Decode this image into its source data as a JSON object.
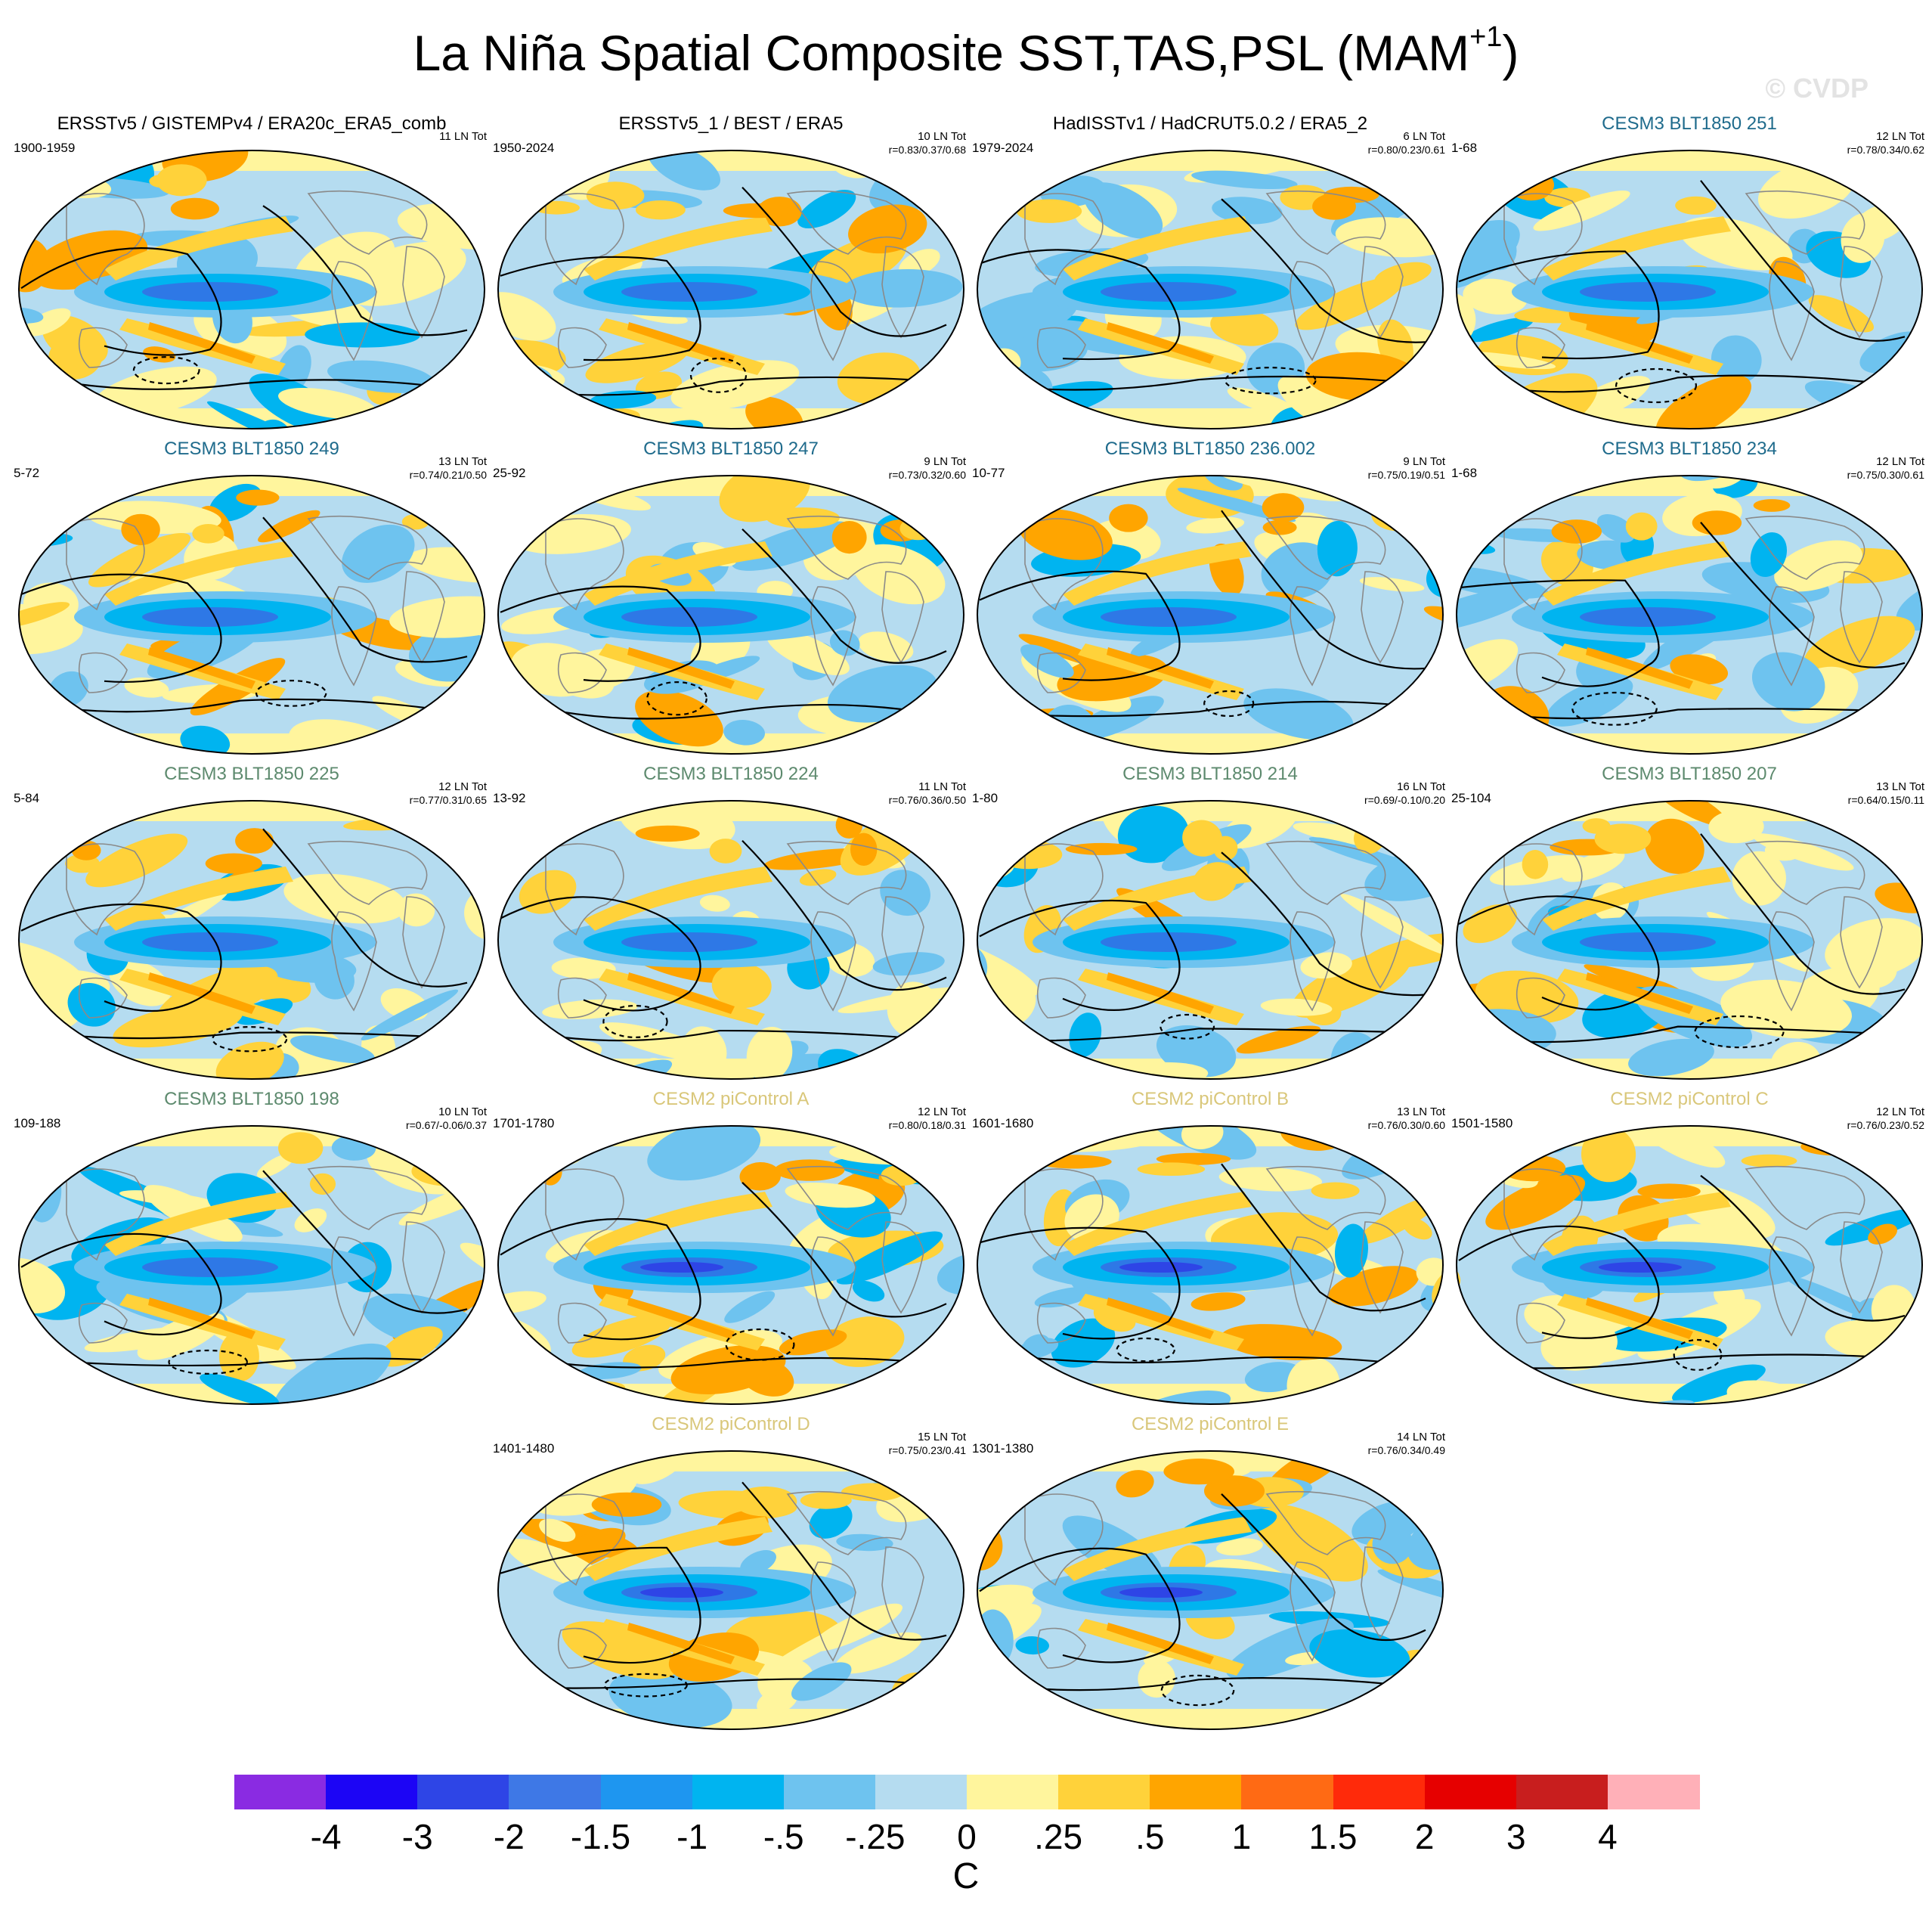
{
  "figure": {
    "title_main": "La Niña Spatial Composite SST,TAS,PSL (MAM",
    "title_sup": "+1",
    "title_close": ")",
    "watermark": "© CVDP"
  },
  "panels": [
    {
      "title": "ERSSTv5 / GISTEMPv4 / ERA20c_ERA5_comb",
      "years": "1900-1959",
      "count": "11 LN Tot",
      "corr": "",
      "title_color": "#000000"
    },
    {
      "title": "ERSSTv5_1 / BEST / ERA5",
      "years": "1950-2024",
      "count": "10 LN Tot",
      "corr": "r=0.83/0.37/0.68",
      "title_color": "#000000"
    },
    {
      "title": "HadISSTv1 / HadCRUT5.0.2 / ERA5_2",
      "years": "1979-2024",
      "count": "6 LN Tot",
      "corr": "r=0.80/0.23/0.61",
      "title_color": "#000000"
    },
    {
      "title": "CESM3 BLT1850 251",
      "years": "1-68",
      "count": "12 LN Tot",
      "corr": "r=0.78/0.34/0.62",
      "title_color": "#1f6b8c"
    },
    {
      "title": "CESM3 BLT1850 249",
      "years": "5-72",
      "count": "13 LN Tot",
      "corr": "r=0.74/0.21/0.50",
      "title_color": "#1f6b8c"
    },
    {
      "title": "CESM3 BLT1850 247",
      "years": "25-92",
      "count": "9 LN Tot",
      "corr": "r=0.73/0.32/0.60",
      "title_color": "#1f6b8c"
    },
    {
      "title": "CESM3 BLT1850 236.002",
      "years": "10-77",
      "count": "9 LN Tot",
      "corr": "r=0.75/0.19/0.51",
      "title_color": "#1f6b8c"
    },
    {
      "title": "CESM3 BLT1850 234",
      "years": "1-68",
      "count": "12 LN Tot",
      "corr": "r=0.75/0.30/0.61",
      "title_color": "#1f6b8c"
    },
    {
      "title": "CESM3 BLT1850 225",
      "years": "5-84",
      "count": "12 LN Tot",
      "corr": "r=0.77/0.31/0.65",
      "title_color": "#5d8a6e"
    },
    {
      "title": "CESM3 BLT1850 224",
      "years": "13-92",
      "count": "11 LN Tot",
      "corr": "r=0.76/0.36/0.50",
      "title_color": "#5d8a6e"
    },
    {
      "title": "CESM3 BLT1850 214",
      "years": "1-80",
      "count": "16 LN Tot",
      "corr": "r=0.69/-0.10/0.20",
      "title_color": "#5d8a6e"
    },
    {
      "title": "CESM3 BLT1850 207",
      "years": "25-104",
      "count": "13 LN Tot",
      "corr": "r=0.64/0.15/0.11",
      "title_color": "#5d8a6e"
    },
    {
      "title": "CESM3 BLT1850 198",
      "years": "109-188",
      "count": "10 LN Tot",
      "corr": "r=0.67/-0.06/0.37",
      "title_color": "#5d8a6e"
    },
    {
      "title": "CESM2 piControl A",
      "years": "1701-1780",
      "count": "12 LN Tot",
      "corr": "r=0.80/0.18/0.31",
      "title_color": "#d9c77a"
    },
    {
      "title": "CESM2 piControl B",
      "years": "1601-1680",
      "count": "13 LN Tot",
      "corr": "r=0.76/0.30/0.60",
      "title_color": "#d9c77a"
    },
    {
      "title": "CESM2 piControl C",
      "years": "1501-1580",
      "count": "12 LN Tot",
      "corr": "r=0.76/0.23/0.52",
      "title_color": "#d9c77a"
    },
    {
      "title": "CESM2 piControl D",
      "years": "1401-1480",
      "count": "15 LN Tot",
      "corr": "r=0.75/0.23/0.41",
      "title_color": "#d9c77a"
    },
    {
      "title": "CESM2 piControl E",
      "years": "1301-1380",
      "count": "14 LN Tot",
      "corr": "r=0.76/0.34/0.49",
      "title_color": "#d9c77a"
    }
  ],
  "colorbar": {
    "units": "C",
    "tick_labels": [
      "-4",
      "-3",
      "-2",
      "-1.5",
      "-1",
      "-.5",
      "-.25",
      "0",
      ".25",
      ".5",
      "1",
      "1.5",
      "2",
      "3",
      "4"
    ],
    "colors": [
      "#8a2be2",
      "#1c05f5",
      "#2e45e6",
      "#3e78e6",
      "#1e96f0",
      "#00b4f0",
      "#6ec3ef",
      "#b5dcf0",
      "#fff59d",
      "#ffd23a",
      "#ffa500",
      "#ff6a14",
      "#ff2a0a",
      "#e60000",
      "#c81e1e",
      "#ffb0b8"
    ]
  }
}
